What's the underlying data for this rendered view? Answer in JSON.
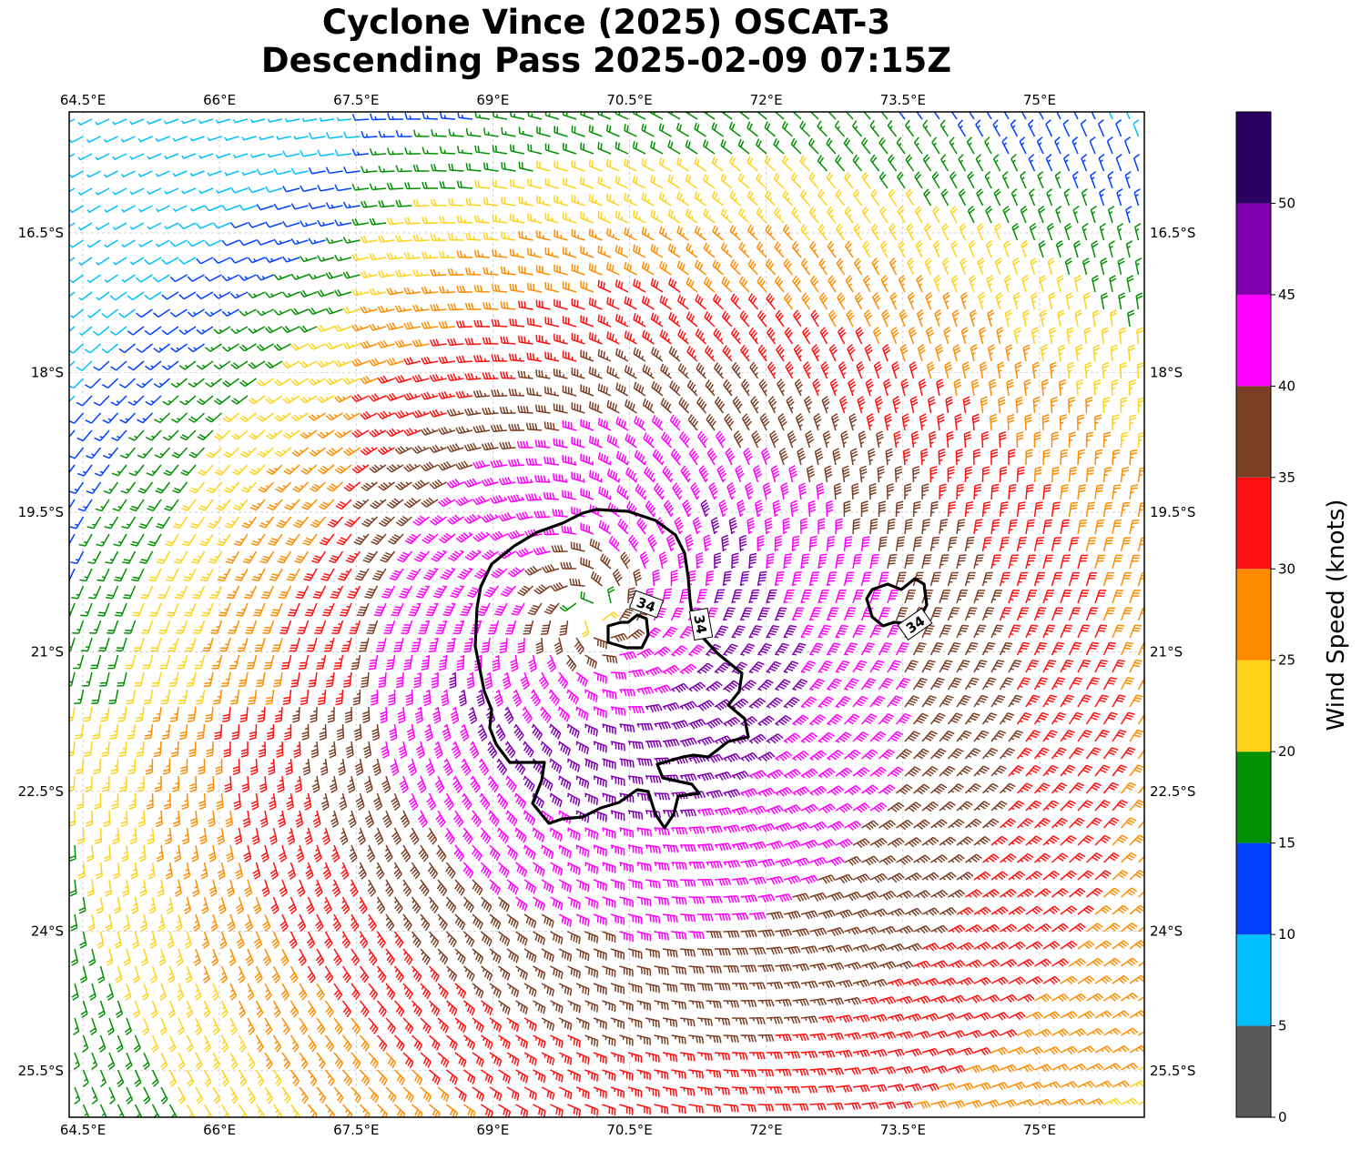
{
  "title": {
    "line1": "Cyclone Vince (2025) OSCAT-3",
    "line2": "Descending Pass 2025-02-09 07:15Z"
  },
  "map": {
    "lon_range": [
      64.35,
      76.15
    ],
    "lat_range": [
      -26.0,
      -15.2
    ],
    "lon_ticks": [
      "64.5°E",
      "66°E",
      "67.5°E",
      "69°E",
      "70.5°E",
      "72°E",
      "73.5°E",
      "75°E"
    ],
    "lon_tick_values": [
      64.5,
      66,
      67.5,
      69,
      70.5,
      72,
      73.5,
      75
    ],
    "lat_ticks": [
      "16.5°S",
      "18°S",
      "19.5°S",
      "21°S",
      "22.5°S",
      "24°S",
      "25.5°S"
    ],
    "lat_tick_values": [
      -16.5,
      -18,
      -19.5,
      -21,
      -22.5,
      -24,
      -25.5
    ],
    "gridlines": true,
    "center": {
      "lon": 70.1,
      "lat": -20.6
    },
    "wind_barbs": "cyclonic (clockwise) circulation, Southern Hemisphere",
    "contour_label": "34",
    "contour_color": "#000000"
  },
  "colorbar": {
    "label": "Wind Speed (knots)",
    "ticks": [
      "0",
      "5",
      "10",
      "15",
      "20",
      "25",
      "30",
      "35",
      "40",
      "45",
      "50"
    ],
    "bins": [
      {
        "min": 0,
        "max": 5,
        "color": "#595959"
      },
      {
        "min": 5,
        "max": 10,
        "color": "#00bfff"
      },
      {
        "min": 10,
        "max": 15,
        "color": "#0040ff"
      },
      {
        "min": 15,
        "max": 20,
        "color": "#009000"
      },
      {
        "min": 20,
        "max": 25,
        "color": "#ffd21a"
      },
      {
        "min": 25,
        "max": 30,
        "color": "#ff8c00"
      },
      {
        "min": 30,
        "max": 35,
        "color": "#ff1010"
      },
      {
        "min": 35,
        "max": 40,
        "color": "#7b3f26"
      },
      {
        "min": 40,
        "max": 45,
        "color": "#ff00ff"
      },
      {
        "min": 45,
        "max": 50,
        "color": "#8000b0"
      },
      {
        "min": 50,
        "max": 55,
        "color": "#2a0060"
      }
    ]
  }
}
